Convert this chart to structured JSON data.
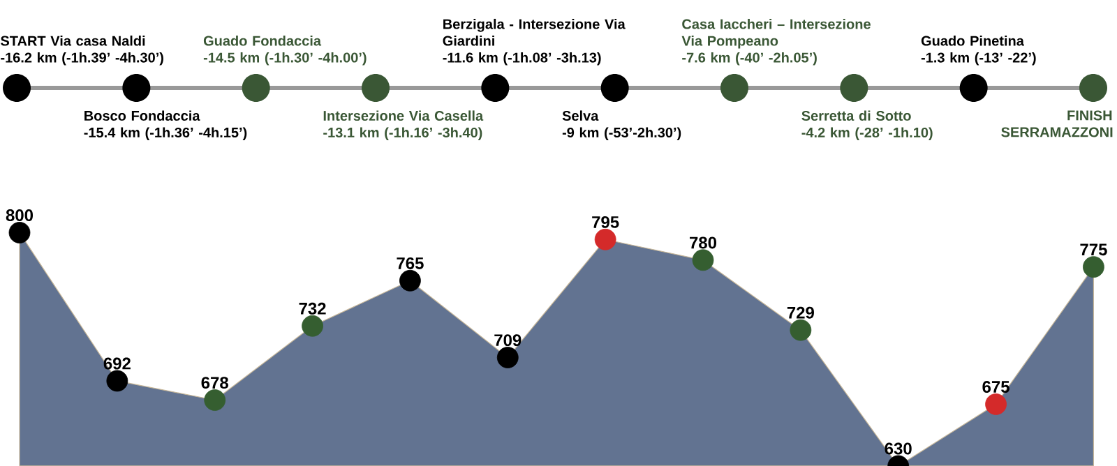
{
  "chart_data": [
    {
      "type": "other",
      "color": "#999999",
      "categories": [
        "START Via casa Naldi",
        "Bosco Fondaccia",
        "Guado Fondaccia",
        "Intersezione Via Casella",
        "Berzigala - Intersezione Via Giardini",
        "Selva",
        "Casa Iaccheri – Intersezione Via Pompeano",
        "Serretta di Sotto",
        "Guado Pinetina",
        "FINISH SERRAMAZZONI"
      ],
      "annotations": [
        "-16.2 km (-1h.39’ -4h.30’)",
        "-15.4 km (-1h.36’ -4h.15’)",
        "-14.5 km (-1h.30’ -4h.00’)",
        "-13.1 km (-1h.16’ -3h.40)",
        "-11.6 km (-1h.08’ -3h.13)",
        "-9 km (-53’-2h.30’)",
        "-7.6 km (-40’ -2h.05’)",
        "-4.2 km (-28’ -1h.10)",
        "-1.3 km (-13’ -22’)"
      ],
      "colors": [
        "#000000",
        "#000000",
        "#3a5735",
        "#3a5735",
        "#000000",
        "#000000",
        "#3a5735",
        "#3a5735",
        "#000000",
        "#3a5735"
      ]
    },
    {
      "type": "area",
      "categories": [
        null,
        null,
        null,
        null,
        null,
        null,
        null,
        null,
        null,
        null,
        null,
        null
      ],
      "values": [
        800,
        692,
        678,
        732,
        765,
        709,
        795,
        780,
        729,
        630,
        675,
        775
      ],
      "color": "#627391",
      "colors": [
        "#000000",
        "#000000",
        "#355e30",
        "#355e30",
        "#000000",
        "#000000",
        "#d42a2a",
        "#355e30",
        "#355e30",
        "#000000",
        "#d42a2a",
        "#355e30"
      ],
      "marker": "circle",
      "data_labels": true
    }
  ]
}
